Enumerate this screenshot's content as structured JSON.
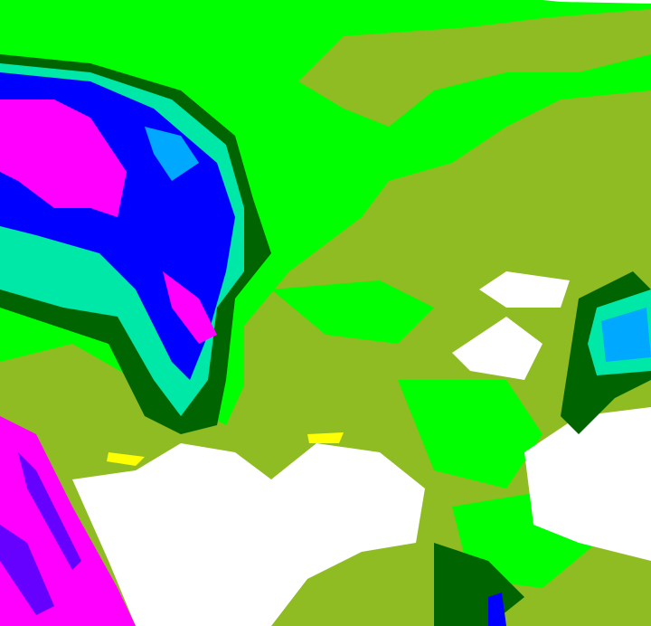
{
  "image": {
    "kind": "false-color satellite imagery",
    "palette": {
      "bright_green": "#00ff00",
      "olive": "#8fbc22",
      "dark_green": "#006400",
      "teal": "#00e8a8",
      "sky_blue": "#00a8ff",
      "blue": "#0000ff",
      "magenta": "#ff00ff",
      "white": "#ffffff",
      "yellow": "#ffff00"
    }
  }
}
